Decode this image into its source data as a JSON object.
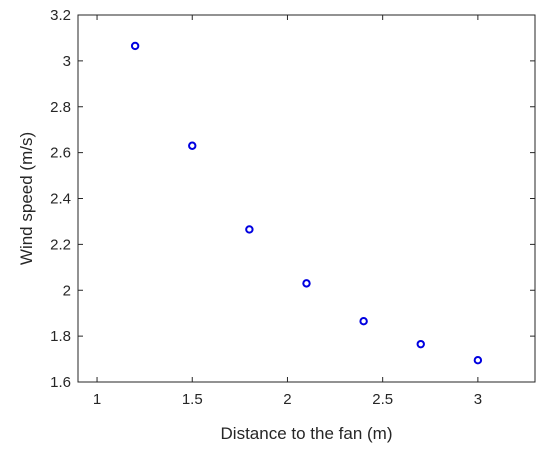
{
  "chart_data": {
    "type": "scatter",
    "title": "",
    "xlabel": "Distance to the fan (m)",
    "ylabel": "Wind speed (m/s)",
    "xlim": [
      0.9,
      3.3
    ],
    "ylim": [
      1.6,
      3.2
    ],
    "x_ticks": [
      1,
      1.5,
      2,
      2.5,
      3
    ],
    "x_tick_labels": [
      "1",
      "1.5",
      "2",
      "2.5",
      "3"
    ],
    "y_ticks": [
      1.6,
      1.8,
      2,
      2.2,
      2.4,
      2.6,
      2.8,
      3,
      3.2
    ],
    "y_tick_labels": [
      "1.6",
      "1.8",
      "2",
      "2.2",
      "2.4",
      "2.6",
      "2.8",
      "3",
      "3.2"
    ],
    "grid": false,
    "box": true,
    "series": [
      {
        "marker": "open-circle",
        "color": "#0000e0",
        "x": [
          1.2,
          1.5,
          1.8,
          2.1,
          2.4,
          2.7,
          3.0
        ],
        "y": [
          3.065,
          2.63,
          2.265,
          2.03,
          1.865,
          1.765,
          1.695
        ]
      }
    ]
  }
}
